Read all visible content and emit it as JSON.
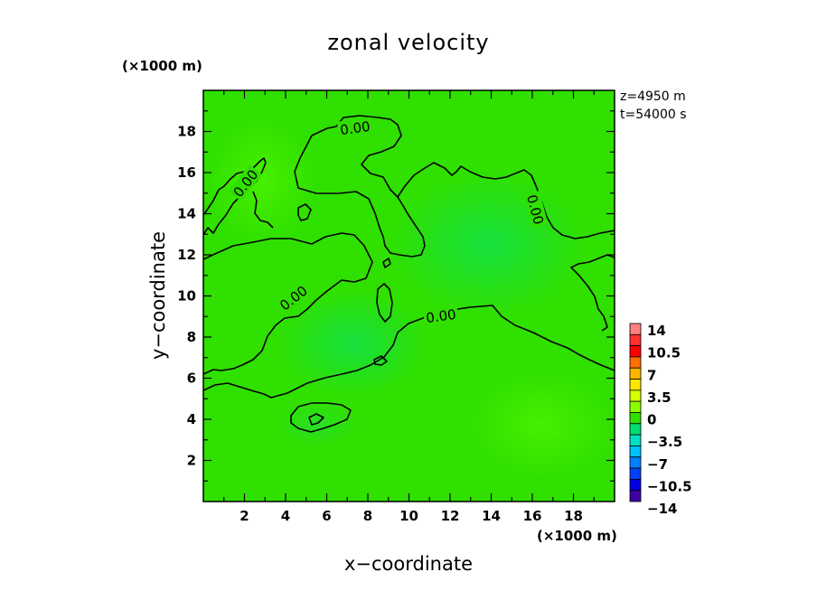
{
  "chart_data": {
    "type": "heatmap",
    "title": "zonal velocity",
    "xlabel": "x−coordinate",
    "ylabel": "y−coordinate",
    "x_unit": "(×1000 m)",
    "y_unit": "(×1000 m)",
    "annotations": [
      "z=4950 m",
      "t=54000 s"
    ],
    "xlim": [
      0,
      20
    ],
    "ylim": [
      0,
      20
    ],
    "xticks": [
      2,
      4,
      6,
      8,
      10,
      12,
      14,
      16,
      18
    ],
    "yticks": [
      2,
      4,
      6,
      8,
      10,
      12,
      14,
      16,
      18
    ],
    "xtick_labels": [
      "2",
      "4",
      "6",
      "8",
      "10",
      "12",
      "14",
      "16",
      "18"
    ],
    "ytick_labels": [
      "2",
      "4",
      "6",
      "8",
      "10",
      "12",
      "14",
      "16",
      "18"
    ],
    "contour_label": "0.00",
    "colorbar": {
      "levels": [
        14,
        12.25,
        10.5,
        8.75,
        7,
        5.25,
        3.5,
        1.75,
        0,
        -1.75,
        -3.5,
        -5.25,
        -7,
        -8.75,
        -10.5,
        -12.25,
        -14
      ],
      "labels": [
        "14",
        "10.5",
        "7",
        "3.5",
        "0",
        "−3.5",
        "−7",
        "−10.5",
        "−14"
      ],
      "colors": [
        "#ff8080",
        "#ff3030",
        "#ff0000",
        "#ff7000",
        "#ffb400",
        "#ffe600",
        "#d8ff00",
        "#8cff00",
        "#30e000",
        "#00e070",
        "#00e0c0",
        "#00c0ff",
        "#0080ff",
        "#0040ff",
        "#0000e0",
        "#4000a0"
      ]
    }
  }
}
